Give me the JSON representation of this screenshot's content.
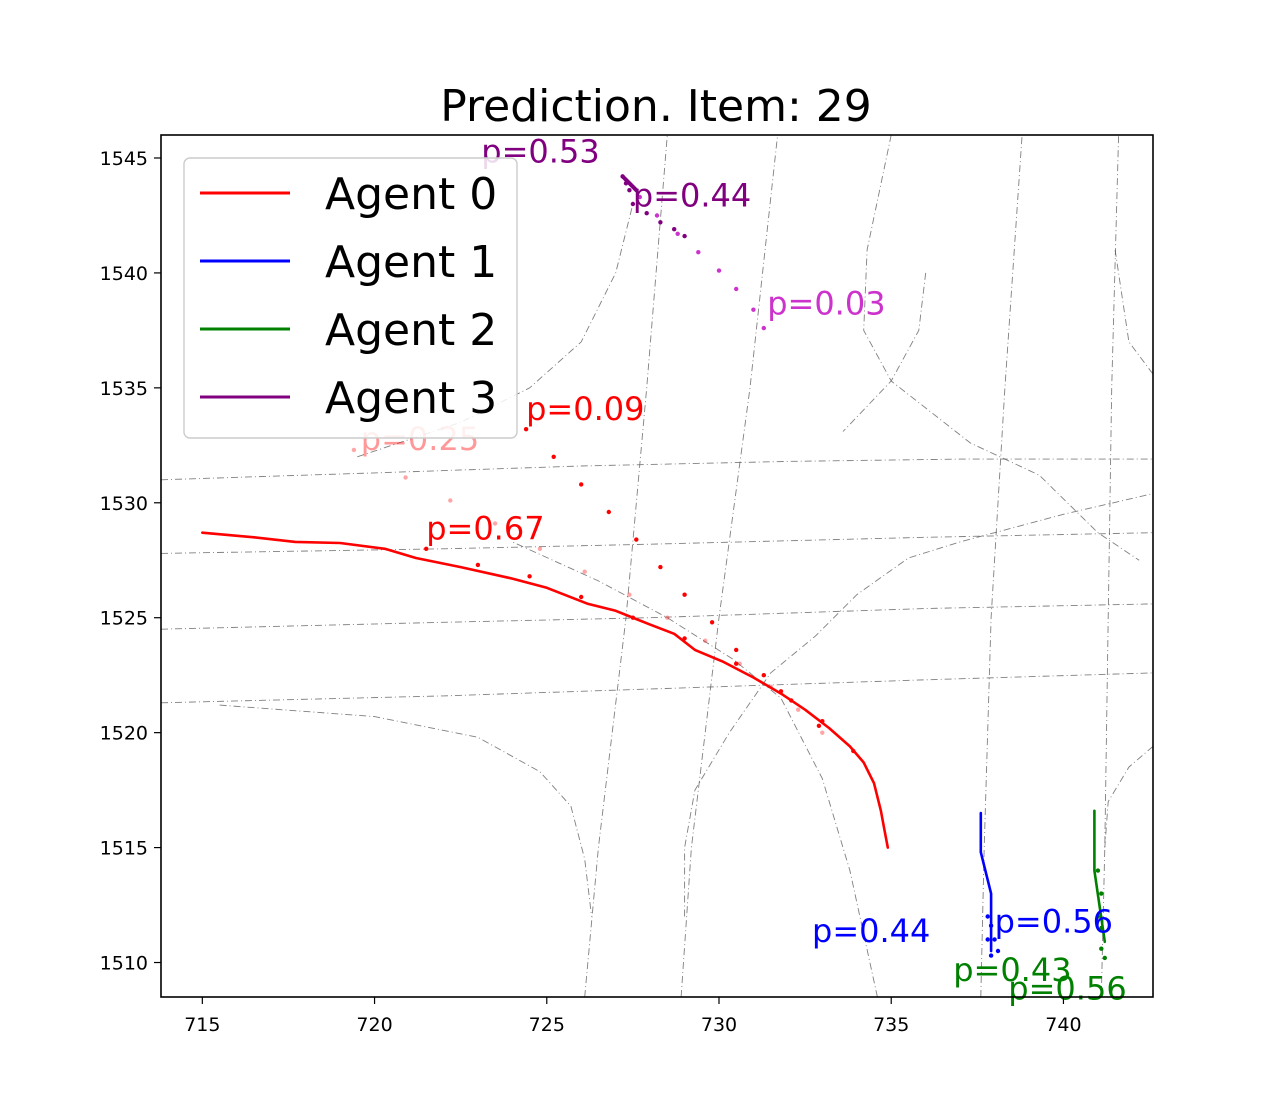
{
  "chart_data": {
    "type": "line",
    "title": "Prediction. Item: 29",
    "xlabel": "",
    "ylabel": "",
    "xlim": [
      713.8,
      742.6
    ],
    "ylim": [
      1508.5,
      1546
    ],
    "xticks": [
      715,
      720,
      725,
      730,
      735,
      740
    ],
    "yticks": [
      1510,
      1515,
      1520,
      1525,
      1530,
      1535,
      1540,
      1545
    ],
    "grid": false,
    "legend_position": "upper-left",
    "colors": {
      "agent0": "#ff0000",
      "agent1": "#0000ff",
      "agent2": "#008000",
      "agent3": "#800080",
      "lane": "#555555"
    },
    "legend": [
      "Agent 0",
      "Agent 1",
      "Agent 2",
      "Agent 3"
    ],
    "lanes": [
      [
        [
          713.8,
          1531.0
        ],
        [
          720,
          1531.3
        ],
        [
          726,
          1531.6
        ],
        [
          732,
          1531.8
        ],
        [
          737,
          1531.9
        ],
        [
          742.6,
          1531.9
        ]
      ],
      [
        [
          713.8,
          1527.8
        ],
        [
          722,
          1528.0
        ],
        [
          728,
          1528.2
        ],
        [
          736,
          1528.5
        ],
        [
          742.6,
          1528.7
        ]
      ],
      [
        [
          713.8,
          1524.5
        ],
        [
          722,
          1524.8
        ],
        [
          728,
          1525.0
        ],
        [
          736,
          1525.4
        ],
        [
          742.6,
          1525.6
        ]
      ],
      [
        [
          713.8,
          1521.3
        ],
        [
          722,
          1521.6
        ],
        [
          728,
          1521.9
        ],
        [
          736,
          1522.3
        ],
        [
          742.6,
          1522.6
        ]
      ],
      [
        [
          726.1,
          1508.5
        ],
        [
          726.5,
          1515
        ],
        [
          727.3,
          1525
        ],
        [
          727.9,
          1535
        ],
        [
          728.5,
          1546
        ]
      ],
      [
        [
          728.9,
          1508.5
        ],
        [
          729.2,
          1515
        ],
        [
          730.0,
          1525
        ],
        [
          730.9,
          1535
        ],
        [
          731.7,
          1546
        ]
      ],
      [
        [
          737.6,
          1508.5
        ],
        [
          737.7,
          1515
        ],
        [
          737.9,
          1525
        ],
        [
          738.3,
          1535
        ],
        [
          738.8,
          1546
        ]
      ],
      [
        [
          741.1,
          1508.5
        ],
        [
          741.2,
          1515
        ],
        [
          741.3,
          1525
        ],
        [
          741.4,
          1535
        ],
        [
          741.6,
          1546
        ]
      ],
      [
        [
          734.6,
          1508.5
        ],
        [
          733.8,
          1514
        ],
        [
          733.0,
          1518
        ],
        [
          731.8,
          1521.5
        ],
        [
          730.4,
          1523.2
        ],
        [
          728.5,
          1525.0
        ],
        [
          726.5,
          1526.6
        ],
        [
          724.0,
          1528.3
        ]
      ],
      [
        [
          719.5,
          1532.0
        ],
        [
          722.5,
          1533.5
        ],
        [
          724.5,
          1535.0
        ],
        [
          726.0,
          1537.0
        ],
        [
          727.0,
          1540.0
        ],
        [
          727.5,
          1543.0
        ]
      ],
      [
        [
          715.5,
          1521.2
        ],
        [
          720,
          1520.7
        ],
        [
          723,
          1519.8
        ],
        [
          724.8,
          1518.3
        ],
        [
          725.7,
          1516.8
        ],
        [
          726.1,
          1514.5
        ],
        [
          726.3,
          1512
        ]
      ],
      [
        [
          729.0,
          1512.0
        ],
        [
          729.0,
          1515.0
        ],
        [
          729.3,
          1517.5
        ],
        [
          730.3,
          1520.0
        ],
        [
          731.5,
          1522.6
        ],
        [
          732.8,
          1524.2
        ],
        [
          734.0,
          1526.0
        ],
        [
          735.5,
          1527.6
        ],
        [
          737.0,
          1528.3
        ],
        [
          740,
          1529.5
        ],
        [
          742.6,
          1530.4
        ]
      ],
      [
        [
          735.0,
          1546
        ],
        [
          734.3,
          1541
        ],
        [
          734.2,
          1537.5
        ],
        [
          735.0,
          1535.3
        ],
        [
          737.3,
          1532.6
        ],
        [
          739.3,
          1531.2
        ],
        [
          741.0,
          1528.7
        ],
        [
          742.2,
          1527.5
        ]
      ],
      [
        [
          741.5,
          1541
        ],
        [
          741.9,
          1537
        ],
        [
          742.6,
          1535.6
        ]
      ],
      [
        [
          742.6,
          1519.4
        ],
        [
          741.9,
          1518.5
        ],
        [
          741.3,
          1517.0
        ],
        [
          741.2,
          1515.0
        ]
      ],
      [
        [
          736.0,
          1540.0
        ],
        [
          735.8,
          1537.5
        ],
        [
          735.0,
          1535.3
        ],
        [
          733.6,
          1533.1
        ]
      ]
    ],
    "series": [
      {
        "name": "Agent 0",
        "values": [
          [
            715.0,
            1528.7
          ],
          [
            716.5,
            1528.5
          ],
          [
            717.7,
            1528.3
          ],
          [
            719.0,
            1528.25
          ],
          [
            720.3,
            1528.0
          ],
          [
            721.2,
            1527.6
          ],
          [
            722.5,
            1527.2
          ],
          [
            724.0,
            1526.7
          ],
          [
            725.0,
            1526.3
          ],
          [
            726.2,
            1525.6
          ],
          [
            727.0,
            1525.3
          ],
          [
            728.0,
            1524.7
          ],
          [
            728.7,
            1524.3
          ],
          [
            729.3,
            1523.6
          ],
          [
            730.1,
            1523.1
          ],
          [
            731.0,
            1522.4
          ],
          [
            731.8,
            1521.7
          ],
          [
            732.5,
            1521.0
          ],
          [
            733.2,
            1520.2
          ],
          [
            733.8,
            1519.4
          ],
          [
            734.2,
            1518.7
          ],
          [
            734.5,
            1517.8
          ],
          [
            734.7,
            1516.6
          ],
          [
            734.8,
            1515.8
          ],
          [
            734.9,
            1515.0
          ]
        ]
      },
      {
        "name": "Agent 1",
        "values": [
          [
            737.6,
            1516.5
          ],
          [
            737.6,
            1514.8
          ],
          [
            737.9,
            1513.0
          ],
          [
            737.9,
            1511.6
          ],
          [
            737.9,
            1510.5
          ]
        ]
      },
      {
        "name": "Agent 2",
        "values": [
          [
            740.9,
            1516.6
          ],
          [
            740.9,
            1514.0
          ],
          [
            741.2,
            1510.9
          ]
        ]
      },
      {
        "name": "Agent 3",
        "values": [
          [
            727.2,
            1544.2
          ],
          [
            727.6,
            1543.6
          ]
        ]
      }
    ],
    "predictions": [
      {
        "agent": "Agent 0",
        "label": "p=0.67",
        "label_at": [
          721.5,
          1528.4
        ],
        "color": "#ff0000",
        "opacity": 1.0,
        "points": [
          [
            721.5,
            1528.0
          ],
          [
            723,
            1527.3
          ],
          [
            724.5,
            1526.8
          ],
          [
            726,
            1525.9
          ],
          [
            727.5,
            1525.0
          ],
          [
            729,
            1524.1
          ],
          [
            730.5,
            1523.0
          ],
          [
            731.8,
            1521.8
          ],
          [
            733,
            1520.5
          ],
          [
            733.9,
            1519.2
          ]
        ]
      },
      {
        "agent": "Agent 0",
        "label": "p=0.25",
        "label_at": [
          719.6,
          1532.3
        ],
        "color": "#ff0000",
        "opacity": 0.35,
        "points": [
          [
            719.4,
            1532.3
          ],
          [
            720.9,
            1531.1
          ],
          [
            722.2,
            1530.1
          ],
          [
            723.5,
            1529.1
          ],
          [
            724.8,
            1528.0
          ],
          [
            726.1,
            1527.0
          ],
          [
            727.4,
            1526.0
          ],
          [
            728.5,
            1525.0
          ],
          [
            729.6,
            1524.0
          ],
          [
            730.6,
            1523.0
          ],
          [
            731.5,
            1522.0
          ],
          [
            732.3,
            1521.0
          ],
          [
            733.0,
            1520.0
          ]
        ]
      },
      {
        "agent": "Agent 0",
        "label": "p=0.09",
        "label_at": [
          724.4,
          1533.6
        ],
        "color": "#ff0000",
        "opacity": 1.0,
        "points": [
          [
            724.4,
            1533.2
          ],
          [
            725.2,
            1532.0
          ],
          [
            726.0,
            1530.8
          ],
          [
            726.8,
            1529.6
          ],
          [
            727.6,
            1528.4
          ],
          [
            728.3,
            1527.2
          ],
          [
            729.0,
            1526.0
          ],
          [
            729.8,
            1524.8
          ],
          [
            730.5,
            1523.6
          ],
          [
            731.3,
            1522.5
          ],
          [
            732.1,
            1521.4
          ],
          [
            732.9,
            1520.3
          ]
        ]
      },
      {
        "agent": "Agent 1",
        "label": "p=0.44",
        "label_at": [
          732.7,
          1510.9
        ],
        "color": "#0000ff",
        "opacity": 1.0,
        "points": [
          [
            737.8,
            1512.0
          ],
          [
            737.8,
            1511.0
          ],
          [
            737.9,
            1510.3
          ]
        ]
      },
      {
        "agent": "Agent 1",
        "label": "p=0.56",
        "label_at": [
          738.0,
          1511.3
        ],
        "color": "#0000ff",
        "opacity": 1.0,
        "points": [
          [
            737.9,
            1511.6
          ],
          [
            738.0,
            1511.0
          ],
          [
            738.1,
            1510.5
          ]
        ]
      },
      {
        "agent": "Agent 2",
        "label": "p=0.43",
        "label_at": [
          736.8,
          1509.2
        ],
        "color": "#008000",
        "opacity": 1.0,
        "points": [
          [
            741.0,
            1514.0
          ],
          [
            741.0,
            1512.0
          ],
          [
            741.1,
            1510.6
          ]
        ]
      },
      {
        "agent": "Agent 2",
        "label": "p=0.56",
        "label_at": [
          738.4,
          1508.4
        ],
        "color": "#008000",
        "opacity": 1.0,
        "points": [
          [
            741.1,
            1513.0
          ],
          [
            741.1,
            1511.5
          ],
          [
            741.2,
            1510.2
          ]
        ]
      },
      {
        "agent": "Agent 3",
        "label": "p=0.53",
        "label_at": [
          723.1,
          1544.8
        ],
        "color": "#800080",
        "opacity": 1.0,
        "points": [
          [
            727.2,
            1544.2
          ],
          [
            727.3,
            1543.9
          ],
          [
            727.4,
            1543.6
          ]
        ]
      },
      {
        "agent": "Agent 3",
        "label": "p=0.44",
        "label_at": [
          727.5,
          1542.9
        ],
        "color": "#800080",
        "opacity": 1.0,
        "points": [
          [
            727.5,
            1543.0
          ],
          [
            727.9,
            1542.6
          ],
          [
            728.3,
            1542.2
          ],
          [
            728.7,
            1541.9
          ],
          [
            729.0,
            1541.6
          ]
        ]
      },
      {
        "agent": "Agent 3",
        "label": "p=0.03",
        "label_at": [
          731.4,
          1538.2
        ],
        "color": "#cc33cc",
        "opacity": 1.0,
        "points": [
          [
            727.7,
            1543.3
          ],
          [
            728.2,
            1542.5
          ],
          [
            728.8,
            1541.7
          ],
          [
            729.4,
            1540.9
          ],
          [
            730.0,
            1540.1
          ],
          [
            730.5,
            1539.3
          ],
          [
            731.0,
            1538.4
          ],
          [
            731.3,
            1537.6
          ]
        ]
      }
    ]
  }
}
